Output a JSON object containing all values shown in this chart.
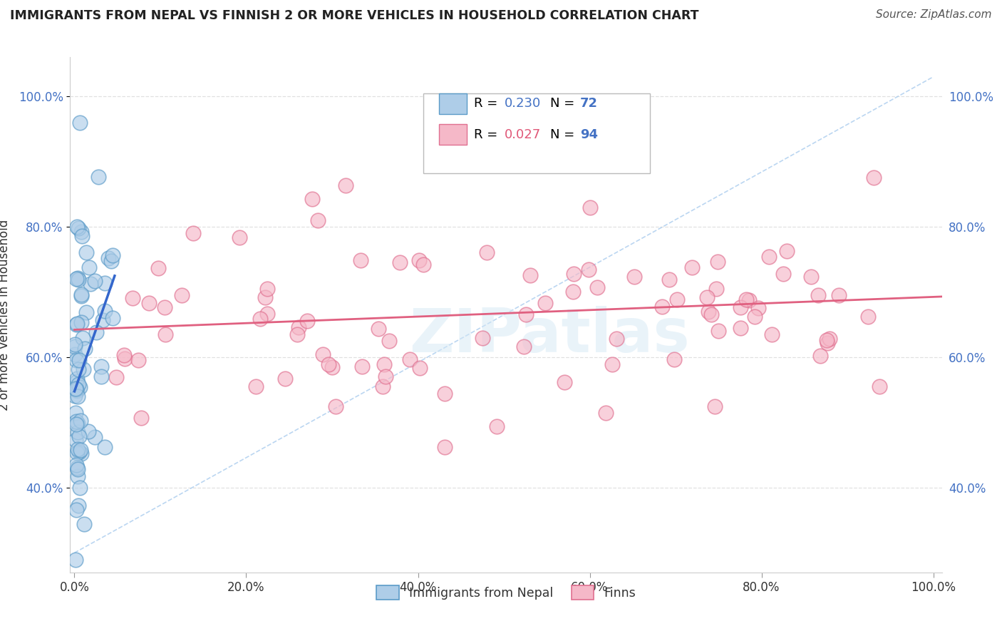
{
  "title": "IMMIGRANTS FROM NEPAL VS FINNISH 2 OR MORE VEHICLES IN HOUSEHOLD CORRELATION CHART",
  "source": "Source: ZipAtlas.com",
  "ylabel": "2 or more Vehicles in Household",
  "xlim": [
    -0.005,
    1.01
  ],
  "ylim": [
    0.27,
    1.06
  ],
  "xticks": [
    0.0,
    0.2,
    0.4,
    0.6,
    0.8,
    1.0
  ],
  "xtick_labels": [
    "0.0%",
    "20.0%",
    "40.0%",
    "60.0%",
    "80.0%",
    "100.0%"
  ],
  "yticks": [
    0.4,
    0.6,
    0.8,
    1.0
  ],
  "ytick_labels": [
    "40.0%",
    "60.0%",
    "80.0%",
    "100.0%"
  ],
  "nepal_color_face": "#aecde8",
  "nepal_color_edge": "#5b9bc8",
  "finn_color_face": "#f5b8c8",
  "finn_color_edge": "#e07090",
  "nepal_R": 0.23,
  "nepal_N": 72,
  "finn_R": 0.027,
  "finn_N": 94,
  "nepal_line_color": "#3366cc",
  "finn_line_color": "#e06080",
  "diag_color": "#aaccee",
  "watermark": "ZIPatlas",
  "watermark_color": "#d4e8f5",
  "background_color": "#ffffff",
  "grid_color": "#dddddd",
  "title_color": "#222222",
  "source_color": "#555555",
  "axis_label_color": "#333333",
  "tick_color_blue": "#4472c4",
  "legend_R_nepal_color": "#4472c4",
  "legend_R_finn_color": "#e05878",
  "legend_N_color": "#4472c4"
}
